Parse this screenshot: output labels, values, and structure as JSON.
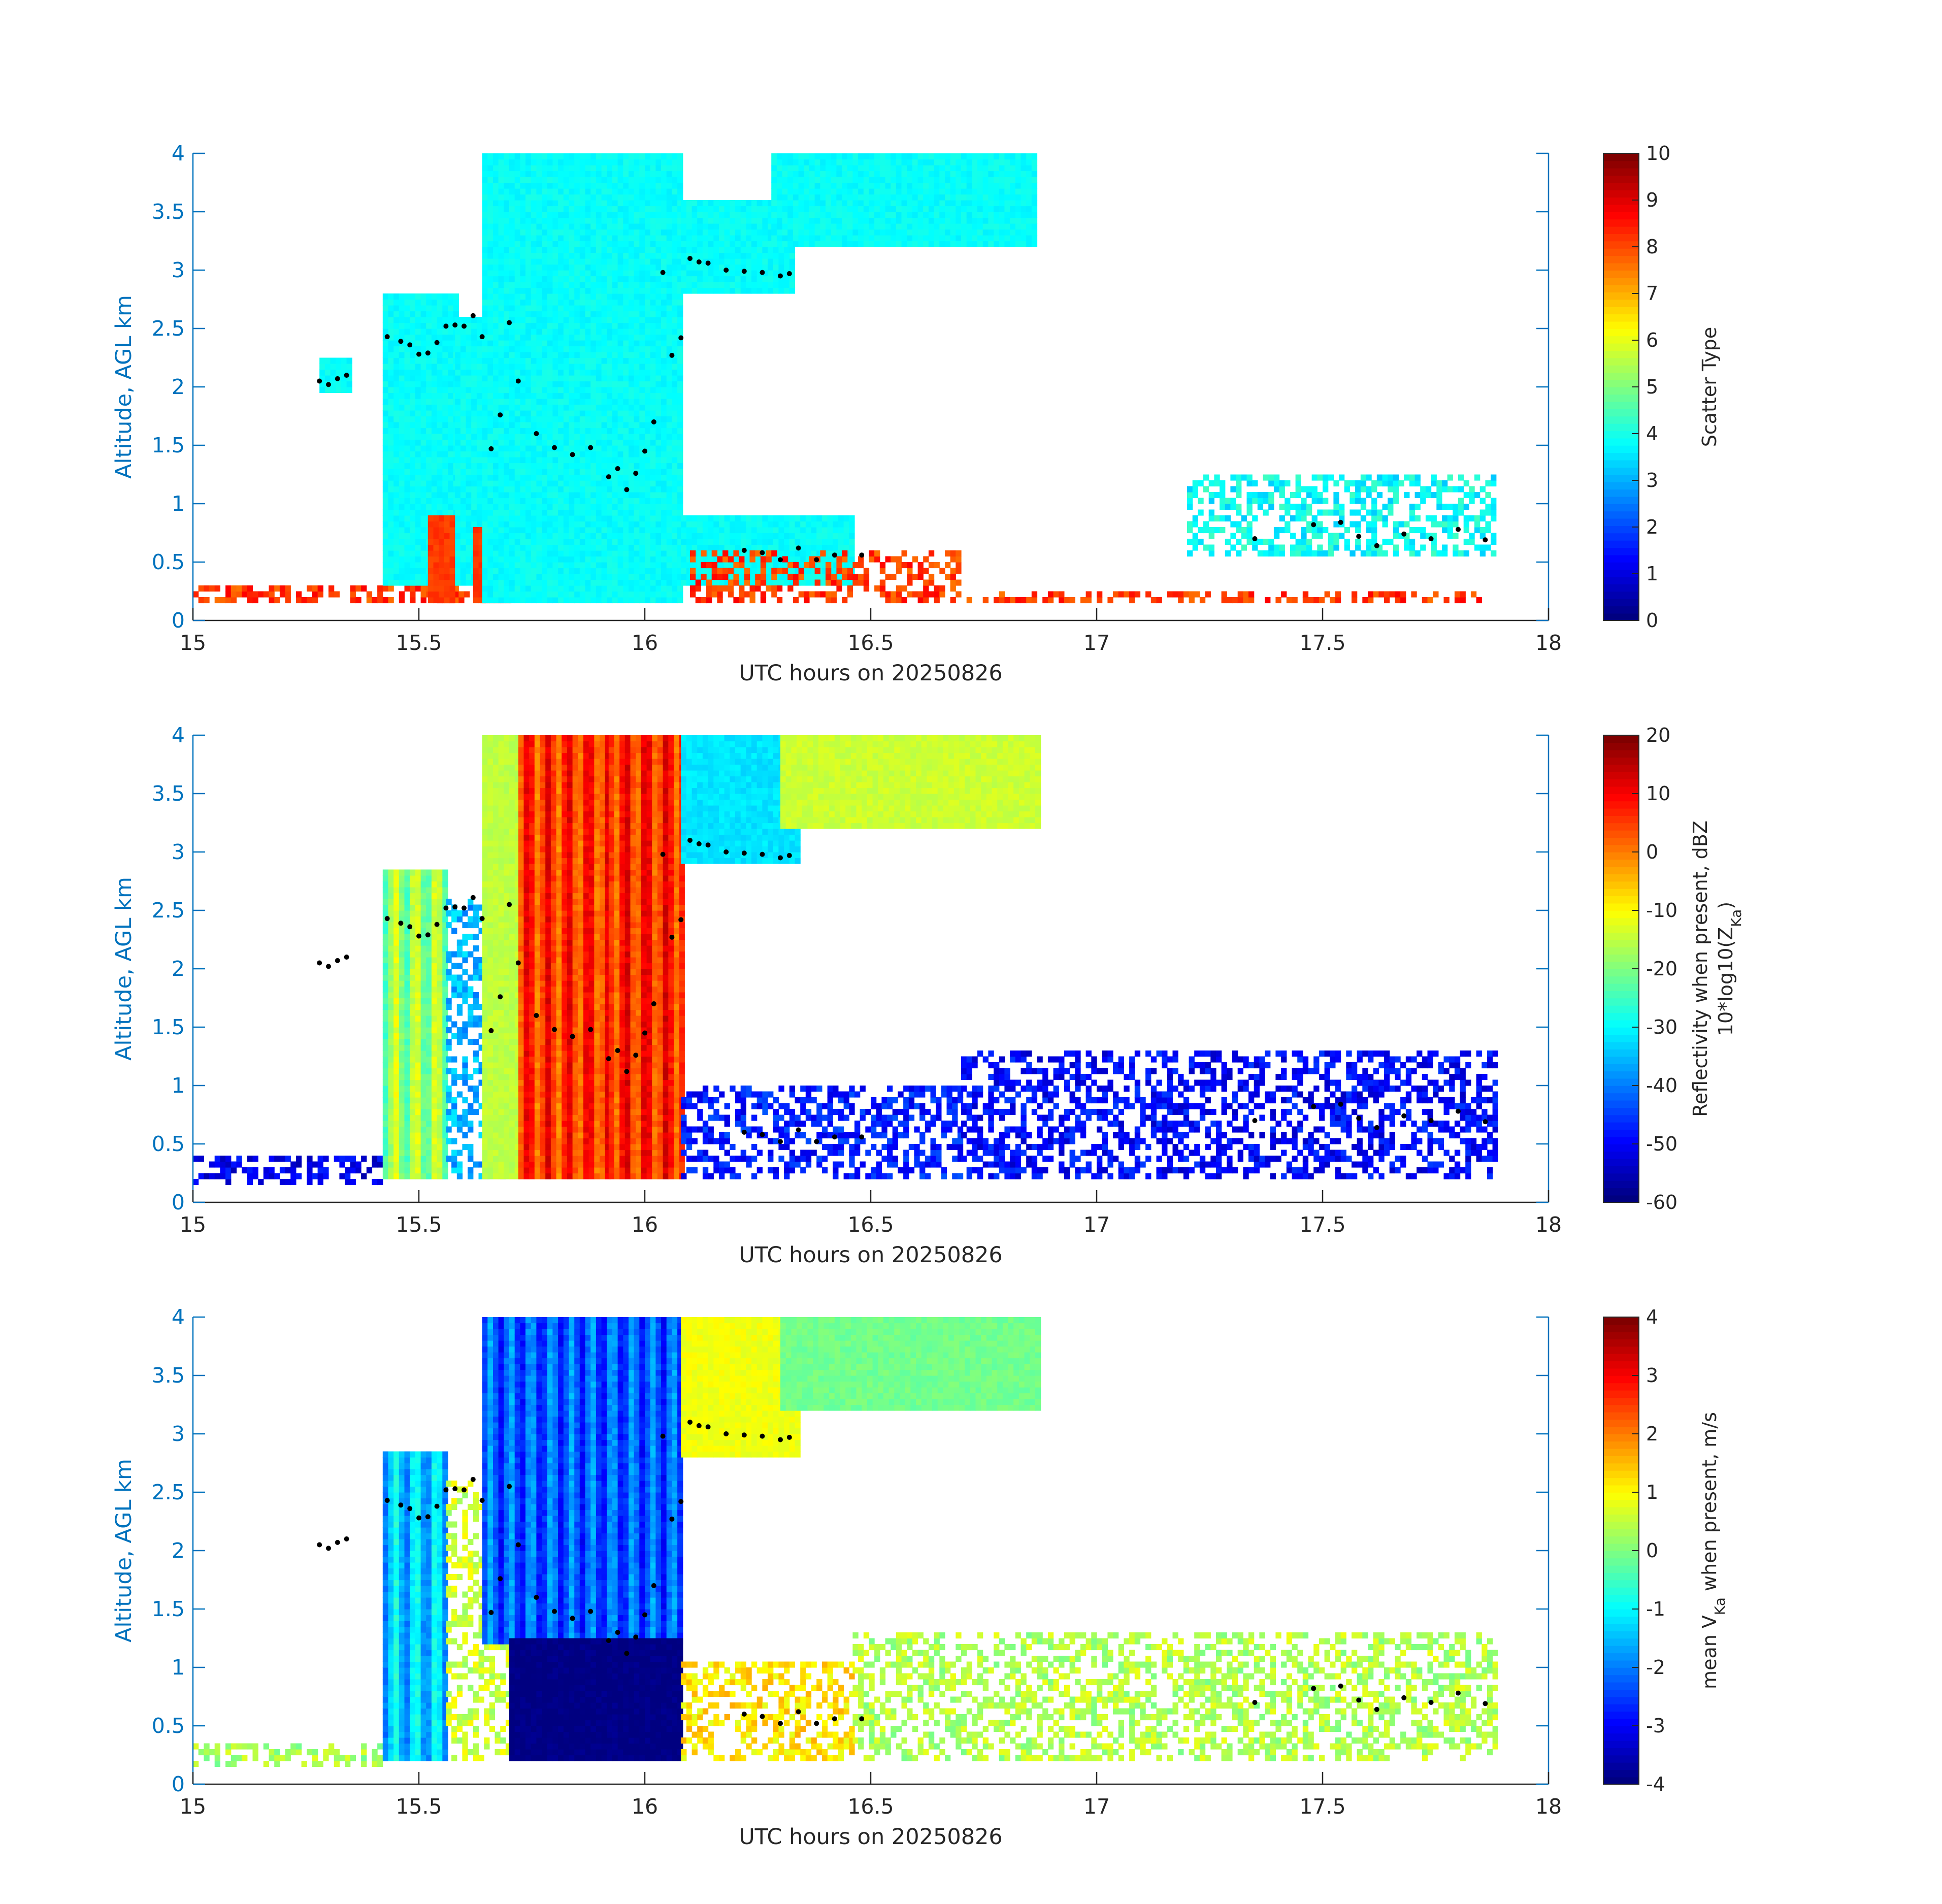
{
  "chart_data": [
    {
      "type": "heatmap",
      "title": "",
      "xlabel": "UTC hours on 20250826",
      "ylabel": "Altitude, AGL km",
      "xlim": [
        15,
        18
      ],
      "ylim": [
        0,
        4
      ],
      "xticks": [
        "15",
        "15.5",
        "16",
        "16.5",
        "17",
        "17.5",
        "18"
      ],
      "yticks": [
        "0",
        "0.5",
        "1",
        "1.5",
        "2",
        "2.5",
        "3",
        "3.5",
        "4"
      ],
      "colorbar": {
        "label": "Scatter Type",
        "range": [
          0,
          10
        ],
        "ticks": [
          "0",
          "1",
          "2",
          "3",
          "4",
          "5",
          "6",
          "7",
          "8",
          "9",
          "10"
        ]
      },
      "colormap": "jet",
      "regions": [
        {
          "x": [
            15.0,
            15.66
          ],
          "y": [
            0.15,
            0.3
          ],
          "value": 8.2,
          "pattern": "sparse"
        },
        {
          "x": [
            15.28,
            15.35
          ],
          "y": [
            1.95,
            2.25
          ],
          "value": 3.8
        },
        {
          "x": [
            15.42,
            15.58
          ],
          "y": [
            0.3,
            2.8
          ],
          "value": 3.8
        },
        {
          "x": [
            15.52,
            15.58
          ],
          "y": [
            0.15,
            0.9
          ],
          "value": 8.2
        },
        {
          "x": [
            15.58,
            15.68
          ],
          "y": [
            0.3,
            2.6
          ],
          "value": 3.8
        },
        {
          "x": [
            15.62,
            15.7
          ],
          "y": [
            0.15,
            0.8
          ],
          "value": 8.2
        },
        {
          "x": [
            15.64,
            16.08
          ],
          "y": [
            0.15,
            4.0
          ],
          "value": 3.8
        },
        {
          "x": [
            16.08,
            16.33
          ],
          "y": [
            2.8,
            3.6
          ],
          "value": 3.8
        },
        {
          "x": [
            16.28,
            16.86
          ],
          "y": [
            3.2,
            4.0
          ],
          "value": 3.8
        },
        {
          "x": [
            16.08,
            16.46
          ],
          "y": [
            0.3,
            0.9
          ],
          "value": 3.8
        },
        {
          "x": [
            16.1,
            16.7
          ],
          "y": [
            0.15,
            0.6
          ],
          "value": 8.2,
          "pattern": "sparse"
        },
        {
          "x": [
            16.7,
            17.85
          ],
          "y": [
            0.15,
            0.25
          ],
          "value": 8.2,
          "pattern": "sparse"
        },
        {
          "x": [
            17.2,
            17.88
          ],
          "y": [
            0.55,
            1.25
          ],
          "value": 3.8,
          "pattern": "sparse"
        }
      ],
      "overlay_points": [
        [
          15.28,
          2.05
        ],
        [
          15.3,
          2.02
        ],
        [
          15.32,
          2.07
        ],
        [
          15.34,
          2.1
        ],
        [
          15.43,
          2.43
        ],
        [
          15.46,
          2.39
        ],
        [
          15.48,
          2.36
        ],
        [
          15.5,
          2.28
        ],
        [
          15.52,
          2.29
        ],
        [
          15.54,
          2.38
        ],
        [
          15.56,
          2.52
        ],
        [
          15.58,
          2.53
        ],
        [
          15.6,
          2.52
        ],
        [
          15.62,
          2.61
        ],
        [
          15.64,
          2.43
        ],
        [
          15.66,
          1.47
        ],
        [
          15.68,
          1.76
        ],
        [
          15.7,
          2.55
        ],
        [
          15.72,
          2.05
        ],
        [
          15.76,
          1.6
        ],
        [
          15.8,
          1.48
        ],
        [
          15.84,
          1.42
        ],
        [
          15.88,
          1.48
        ],
        [
          15.92,
          1.23
        ],
        [
          15.94,
          1.3
        ],
        [
          15.96,
          1.12
        ],
        [
          15.98,
          1.26
        ],
        [
          16.0,
          1.45
        ],
        [
          16.02,
          1.7
        ],
        [
          16.04,
          2.98
        ],
        [
          16.06,
          2.27
        ],
        [
          16.08,
          2.42
        ],
        [
          16.1,
          3.1
        ],
        [
          16.12,
          3.07
        ],
        [
          16.14,
          3.06
        ],
        [
          16.18,
          3.0
        ],
        [
          16.22,
          2.99
        ],
        [
          16.26,
          2.98
        ],
        [
          16.3,
          2.95
        ],
        [
          16.32,
          2.97
        ],
        [
          16.22,
          0.6
        ],
        [
          16.26,
          0.58
        ],
        [
          16.3,
          0.52
        ],
        [
          16.34,
          0.62
        ],
        [
          16.38,
          0.52
        ],
        [
          16.42,
          0.56
        ],
        [
          16.48,
          0.56
        ],
        [
          17.35,
          0.7
        ],
        [
          17.48,
          0.82
        ],
        [
          17.54,
          0.84
        ],
        [
          17.58,
          0.72
        ],
        [
          17.62,
          0.64
        ],
        [
          17.68,
          0.74
        ],
        [
          17.74,
          0.7
        ],
        [
          17.8,
          0.78
        ],
        [
          17.86,
          0.69
        ]
      ]
    },
    {
      "type": "heatmap",
      "title": "",
      "xlabel": "UTC hours on 20250826",
      "ylabel": "Altitude, AGL km",
      "xlim": [
        15,
        18
      ],
      "ylim": [
        0,
        4
      ],
      "xticks": [
        "15",
        "15.5",
        "16",
        "16.5",
        "17",
        "17.5",
        "18"
      ],
      "yticks": [
        "0",
        "0.5",
        "1",
        "1.5",
        "2",
        "2.5",
        "3",
        "3.5",
        "4"
      ],
      "colorbar": {
        "label_line1": "Reflectivity when present, dBZ",
        "label_line2_prefix": "10*log10(Z",
        "label_line2_sub": "Ka",
        "label_line2_suffix": ")",
        "range": [
          -60,
          20
        ],
        "ticks": [
          "-60",
          "-50",
          "-40",
          "-30",
          "-20",
          "-10",
          "0",
          "10",
          "20"
        ]
      },
      "colormap": "jet",
      "regions": [
        {
          "x": [
            15.0,
            15.42
          ],
          "y": [
            0.15,
            0.4
          ],
          "value": -52,
          "pattern": "sparse"
        },
        {
          "x": [
            15.42,
            15.56
          ],
          "y": [
            0.2,
            2.85
          ],
          "value": -18,
          "pattern": "plume"
        },
        {
          "x": [
            15.56,
            15.7
          ],
          "y": [
            0.2,
            2.6
          ],
          "value": -36,
          "pattern": "sparse"
        },
        {
          "x": [
            15.64,
            15.72
          ],
          "y": [
            0.2,
            4.0
          ],
          "value": -15
        },
        {
          "x": [
            15.72,
            15.92
          ],
          "y": [
            0.2,
            4.0
          ],
          "value": 6,
          "pattern": "columns"
        },
        {
          "x": [
            15.92,
            16.08
          ],
          "y": [
            0.2,
            4.0
          ],
          "value": 7,
          "pattern": "columns"
        },
        {
          "x": [
            16.08,
            16.34
          ],
          "y": [
            2.9,
            4.0
          ],
          "value": -32
        },
        {
          "x": [
            16.3,
            16.87
          ],
          "y": [
            3.2,
            4.0
          ],
          "value": -14
        },
        {
          "x": [
            16.08,
            16.7
          ],
          "y": [
            0.2,
            1.0
          ],
          "value": -48,
          "pattern": "sparse"
        },
        {
          "x": [
            16.7,
            17.88
          ],
          "y": [
            0.2,
            1.3
          ],
          "value": -50,
          "pattern": "sparse"
        }
      ],
      "overlay_points": [
        [
          15.28,
          2.05
        ],
        [
          15.3,
          2.02
        ],
        [
          15.32,
          2.07
        ],
        [
          15.34,
          2.1
        ],
        [
          15.43,
          2.43
        ],
        [
          15.46,
          2.39
        ],
        [
          15.48,
          2.36
        ],
        [
          15.5,
          2.28
        ],
        [
          15.52,
          2.29
        ],
        [
          15.54,
          2.38
        ],
        [
          15.56,
          2.52
        ],
        [
          15.58,
          2.53
        ],
        [
          15.6,
          2.52
        ],
        [
          15.62,
          2.61
        ],
        [
          15.64,
          2.43
        ],
        [
          15.66,
          1.47
        ],
        [
          15.68,
          1.76
        ],
        [
          15.7,
          2.55
        ],
        [
          15.72,
          2.05
        ],
        [
          15.76,
          1.6
        ],
        [
          15.8,
          1.48
        ],
        [
          15.84,
          1.42
        ],
        [
          15.88,
          1.48
        ],
        [
          15.92,
          1.23
        ],
        [
          15.94,
          1.3
        ],
        [
          15.96,
          1.12
        ],
        [
          15.98,
          1.26
        ],
        [
          16.0,
          1.45
        ],
        [
          16.02,
          1.7
        ],
        [
          16.04,
          2.98
        ],
        [
          16.06,
          2.27
        ],
        [
          16.08,
          2.42
        ],
        [
          16.1,
          3.1
        ],
        [
          16.12,
          3.07
        ],
        [
          16.14,
          3.06
        ],
        [
          16.18,
          3.0
        ],
        [
          16.22,
          2.99
        ],
        [
          16.26,
          2.98
        ],
        [
          16.3,
          2.95
        ],
        [
          16.32,
          2.97
        ],
        [
          16.22,
          0.6
        ],
        [
          16.26,
          0.58
        ],
        [
          16.3,
          0.52
        ],
        [
          16.34,
          0.62
        ],
        [
          16.38,
          0.52
        ],
        [
          16.42,
          0.56
        ],
        [
          16.48,
          0.56
        ],
        [
          17.35,
          0.7
        ],
        [
          17.48,
          0.82
        ],
        [
          17.54,
          0.84
        ],
        [
          17.58,
          0.72
        ],
        [
          17.62,
          0.64
        ],
        [
          17.68,
          0.74
        ],
        [
          17.74,
          0.7
        ],
        [
          17.8,
          0.78
        ],
        [
          17.86,
          0.69
        ]
      ]
    },
    {
      "type": "heatmap",
      "title": "",
      "xlabel": "UTC hours on 20250826",
      "ylabel": "Altitude, AGL km",
      "xlim": [
        15,
        18
      ],
      "ylim": [
        0,
        4
      ],
      "xticks": [
        "15",
        "15.5",
        "16",
        "16.5",
        "17",
        "17.5",
        "18"
      ],
      "yticks": [
        "0",
        "0.5",
        "1",
        "1.5",
        "2",
        "2.5",
        "3",
        "3.5",
        "4"
      ],
      "colorbar": {
        "label_prefix": "mean V",
        "label_sub": "Ka",
        "label_suffix": " when present, m/s",
        "range": [
          -4,
          4
        ],
        "ticks": [
          "-4",
          "-3",
          "-2",
          "-1",
          "0",
          "1",
          "2",
          "3",
          "4"
        ]
      },
      "colormap": "jet",
      "regions": [
        {
          "x": [
            15.0,
            15.42
          ],
          "y": [
            0.15,
            0.35
          ],
          "value": 0.3,
          "pattern": "sparse"
        },
        {
          "x": [
            15.42,
            15.56
          ],
          "y": [
            0.2,
            2.85
          ],
          "value": -1.4,
          "pattern": "plume"
        },
        {
          "x": [
            15.56,
            15.7
          ],
          "y": [
            0.2,
            2.6
          ],
          "value": 0.6,
          "pattern": "sparse"
        },
        {
          "x": [
            15.64,
            16.08
          ],
          "y": [
            1.2,
            4.0
          ],
          "value": -2.3,
          "pattern": "columns"
        },
        {
          "x": [
            15.7,
            16.08
          ],
          "y": [
            0.2,
            1.25
          ],
          "value": -4.0
        },
        {
          "x": [
            16.08,
            16.34
          ],
          "y": [
            2.8,
            4.0
          ],
          "value": 0.9
        },
        {
          "x": [
            16.3,
            16.87
          ],
          "y": [
            3.2,
            4.0
          ],
          "value": -0.1
        },
        {
          "x": [
            16.08,
            16.46
          ],
          "y": [
            0.2,
            1.05
          ],
          "value": 1.2,
          "pattern": "sparse"
        },
        {
          "x": [
            16.46,
            17.88
          ],
          "y": [
            0.2,
            1.3
          ],
          "value": 0.4,
          "pattern": "sparse"
        }
      ],
      "overlay_points": [
        [
          15.28,
          2.05
        ],
        [
          15.3,
          2.02
        ],
        [
          15.32,
          2.07
        ],
        [
          15.34,
          2.1
        ],
        [
          15.43,
          2.43
        ],
        [
          15.46,
          2.39
        ],
        [
          15.48,
          2.36
        ],
        [
          15.5,
          2.28
        ],
        [
          15.52,
          2.29
        ],
        [
          15.54,
          2.38
        ],
        [
          15.56,
          2.52
        ],
        [
          15.58,
          2.53
        ],
        [
          15.6,
          2.52
        ],
        [
          15.62,
          2.61
        ],
        [
          15.64,
          2.43
        ],
        [
          15.66,
          1.47
        ],
        [
          15.68,
          1.76
        ],
        [
          15.7,
          2.55
        ],
        [
          15.72,
          2.05
        ],
        [
          15.76,
          1.6
        ],
        [
          15.8,
          1.48
        ],
        [
          15.84,
          1.42
        ],
        [
          15.88,
          1.48
        ],
        [
          15.92,
          1.23
        ],
        [
          15.94,
          1.3
        ],
        [
          15.96,
          1.12
        ],
        [
          15.98,
          1.26
        ],
        [
          16.0,
          1.45
        ],
        [
          16.02,
          1.7
        ],
        [
          16.04,
          2.98
        ],
        [
          16.06,
          2.27
        ],
        [
          16.08,
          2.42
        ],
        [
          16.1,
          3.1
        ],
        [
          16.12,
          3.07
        ],
        [
          16.14,
          3.06
        ],
        [
          16.18,
          3.0
        ],
        [
          16.22,
          2.99
        ],
        [
          16.26,
          2.98
        ],
        [
          16.3,
          2.95
        ],
        [
          16.32,
          2.97
        ],
        [
          16.22,
          0.6
        ],
        [
          16.26,
          0.58
        ],
        [
          16.3,
          0.52
        ],
        [
          16.34,
          0.62
        ],
        [
          16.38,
          0.52
        ],
        [
          16.42,
          0.56
        ],
        [
          16.48,
          0.56
        ],
        [
          17.35,
          0.7
        ],
        [
          17.48,
          0.82
        ],
        [
          17.54,
          0.84
        ],
        [
          17.58,
          0.72
        ],
        [
          17.62,
          0.64
        ],
        [
          17.68,
          0.74
        ],
        [
          17.74,
          0.7
        ],
        [
          17.8,
          0.78
        ],
        [
          17.86,
          0.69
        ]
      ]
    }
  ]
}
